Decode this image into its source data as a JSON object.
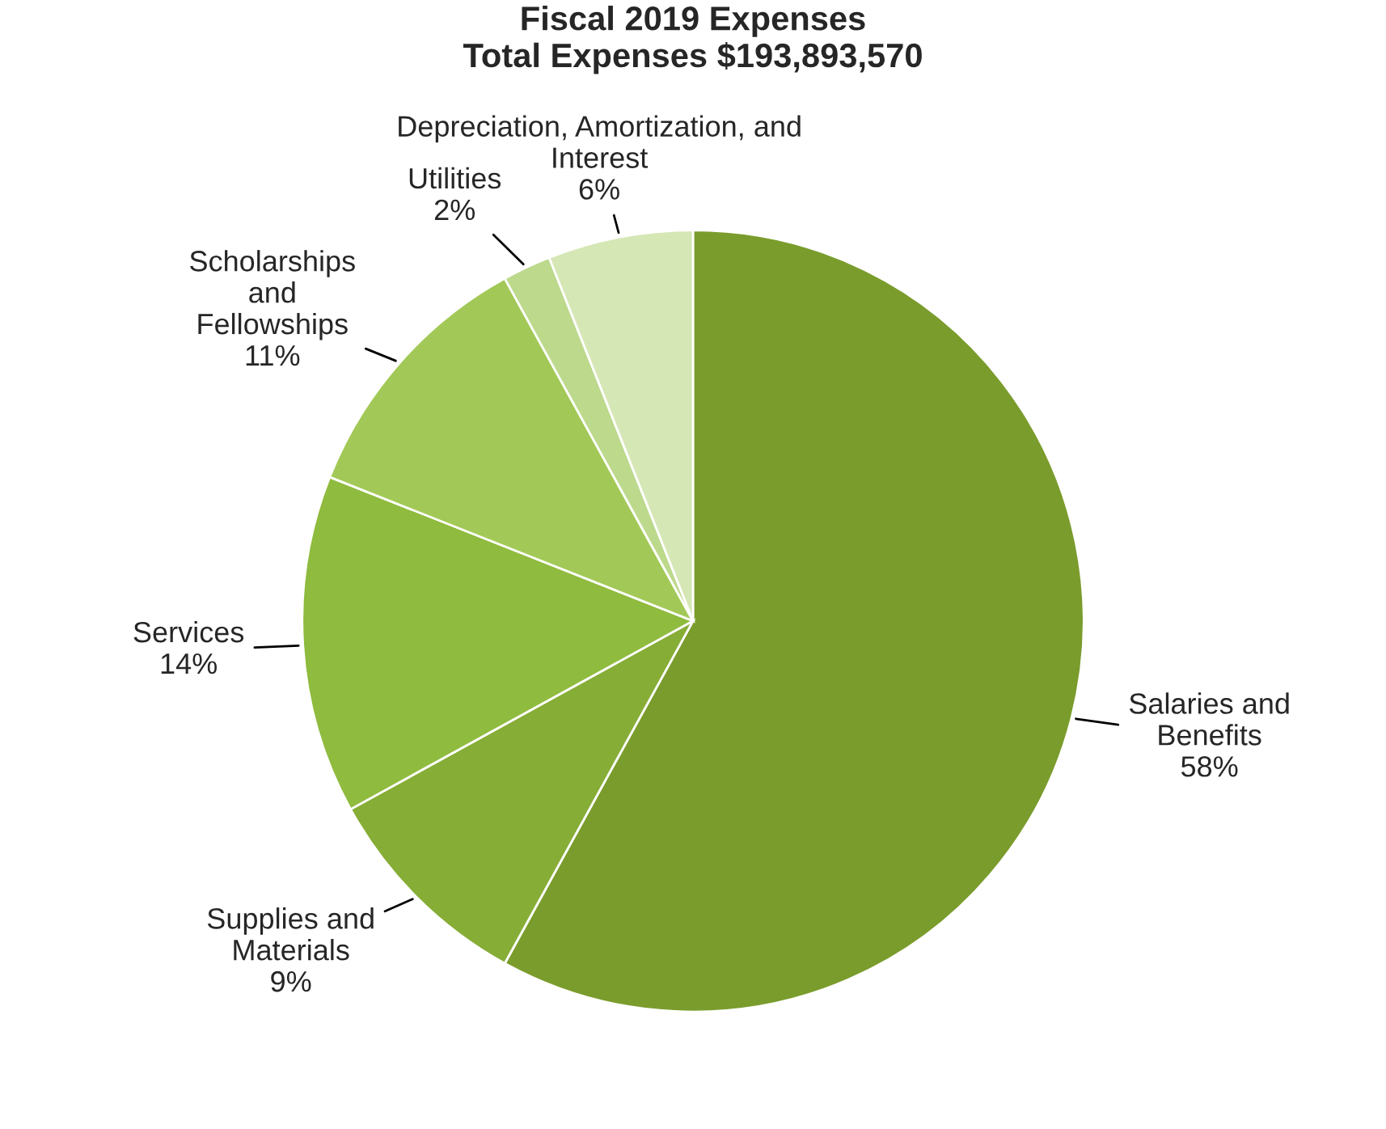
{
  "chart_data": {
    "type": "pie",
    "title": "Fiscal 2019 Expenses\nTotal Expenses $193,893,570",
    "categories": [
      "Salaries and\nBenefits",
      "Supplies and\nMaterials",
      "Services",
      "Scholarships\nand\nFellowships",
      "Utilities",
      "Depreciation, Amortization, and\nInterest"
    ],
    "values": [
      58,
      9,
      14,
      11,
      2,
      6
    ],
    "value_labels": [
      "58%",
      "9%",
      "14%",
      "11%",
      "2%",
      "6%"
    ],
    "colors": [
      "#7a9c2c",
      "#86ad36",
      "#8fbb3e",
      "#a2c957",
      "#bcd98c",
      "#d6e7b6"
    ]
  }
}
